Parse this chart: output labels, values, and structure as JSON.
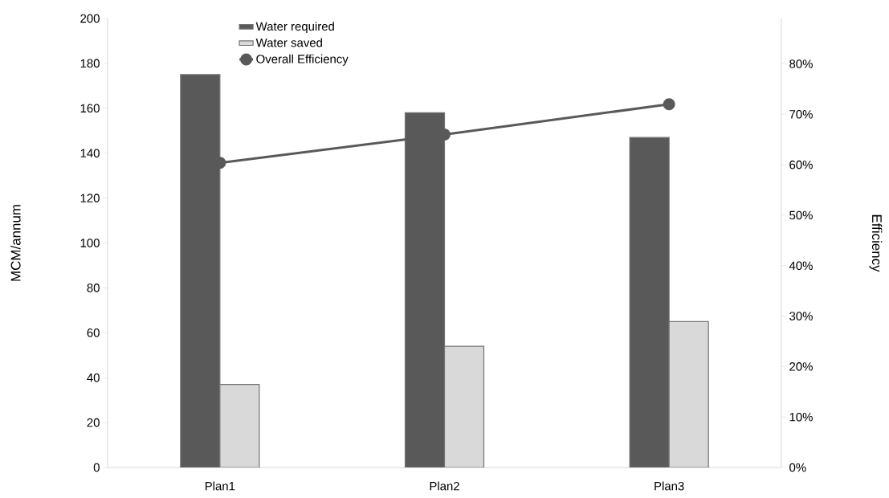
{
  "chart_data": {
    "type": "bar",
    "categories": [
      "Plan1",
      "Plan2",
      "Plan3"
    ],
    "ylabel": "MCM/annum",
    "y2label": "Efficiency",
    "ylim": [
      0,
      200
    ],
    "yticks": [
      0,
      20,
      40,
      60,
      80,
      100,
      120,
      140,
      160,
      180,
      200
    ],
    "y2lim": [
      0,
      89
    ],
    "y2ticks": [
      {
        "value": 0,
        "label": "0%"
      },
      {
        "value": 10,
        "label": "10%"
      },
      {
        "value": 20,
        "label": "20%"
      },
      {
        "value": 30,
        "label": "30%"
      },
      {
        "value": 40,
        "label": "40%"
      },
      {
        "value": 50,
        "label": "50%"
      },
      {
        "value": 60,
        "label": "60%"
      },
      {
        "value": 70,
        "label": "70%"
      },
      {
        "value": 80,
        "label": "80%"
      }
    ],
    "legend": "top",
    "series": [
      {
        "name": "Water required",
        "color": "#595959",
        "values": [
          175,
          158,
          147
        ]
      },
      {
        "name": "Water saved",
        "color": "#d9d9d9",
        "values": [
          37,
          54,
          65
        ]
      },
      {
        "name": "Overall Efficiency",
        "type": "line",
        "axis": "y2",
        "marker": "circle",
        "color": "#595959",
        "values": [
          60.4,
          66,
          72
        ]
      }
    ]
  }
}
